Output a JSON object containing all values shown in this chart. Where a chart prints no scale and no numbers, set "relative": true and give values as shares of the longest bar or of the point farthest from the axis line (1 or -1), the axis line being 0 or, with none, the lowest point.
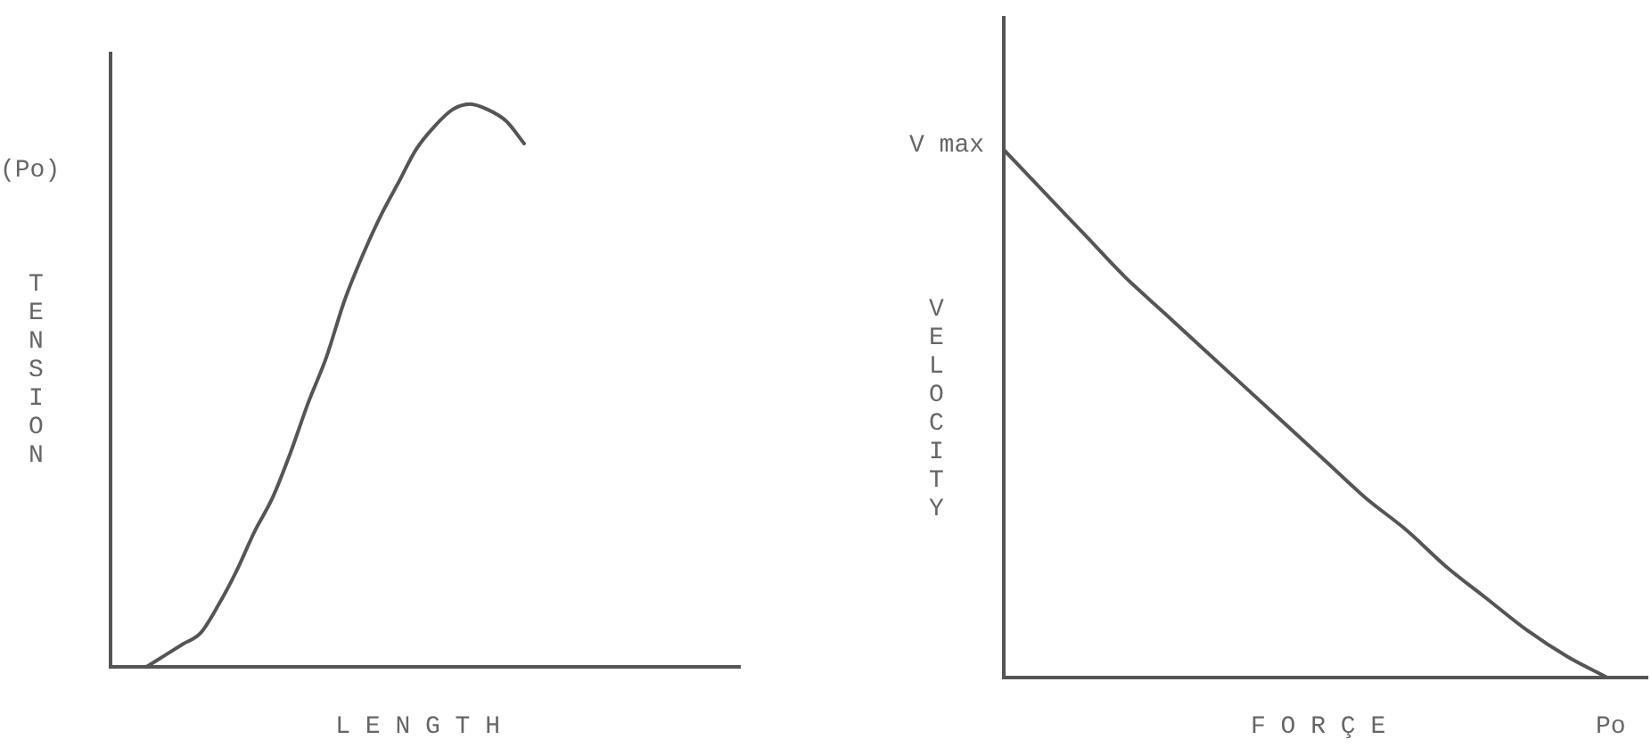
{
  "chart_data": [
    {
      "type": "line",
      "xlabel": "LENGTH",
      "ylabel": "TENSION",
      "annotations": [
        "(Po)"
      ],
      "relative": true,
      "tick_labels": false,
      "categories": [
        null,
        null,
        null,
        null,
        null,
        null,
        null,
        null,
        null,
        null,
        null,
        null,
        null,
        null,
        null,
        null,
        null,
        null,
        null,
        null,
        null,
        null,
        null,
        null,
        null,
        null,
        null,
        null,
        null,
        null,
        null,
        null,
        null,
        null,
        null,
        null
      ],
      "series": [
        {
          "color": "#555555",
          "values": [
            null,
            null,
            0,
            0.02,
            0.04,
            0.06,
            0.11,
            0.17,
            0.24,
            0.3,
            0.38,
            0.47,
            0.55,
            0.65,
            0.73,
            0.8,
            0.86,
            0.92,
            0.96,
            0.99,
            1.0,
            0.99,
            0.97,
            0.93,
            null,
            null,
            null,
            null,
            null,
            null,
            null,
            null,
            null,
            null,
            null,
            null
          ]
        }
      ]
    },
    {
      "type": "line",
      "xlabel": "FORÇE",
      "ylabel": "VELOCITY",
      "annotations": [
        "V max",
        "Po"
      ],
      "relative": true,
      "tick_labels": false,
      "categories": [
        null,
        null,
        null,
        null,
        null,
        null,
        null,
        null,
        null,
        null,
        null,
        null,
        null,
        null,
        null,
        null,
        null
      ],
      "series": [
        {
          "color": "#555555",
          "values": [
            1.0,
            0.92,
            0.84,
            0.76,
            0.69,
            0.62,
            0.55,
            0.48,
            0.41,
            0.34,
            0.28,
            0.21,
            0.15,
            0.09,
            0.04,
            0,
            null
          ]
        }
      ]
    }
  ]
}
